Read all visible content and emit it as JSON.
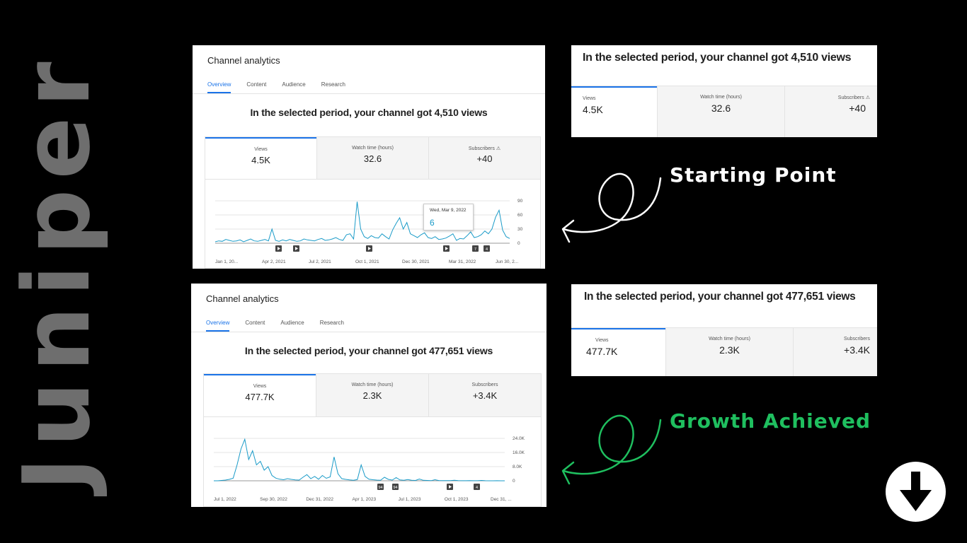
{
  "brand": "Juniper",
  "panels": [
    {
      "title": "Channel analytics",
      "tabs": [
        "Overview",
        "Content",
        "Audience",
        "Research"
      ],
      "headline": "In the selected period, your channel got 4,510 views",
      "metrics": [
        {
          "label": "Views",
          "value": "4.5K"
        },
        {
          "label": "Watch time (hours)",
          "value": "32.6"
        },
        {
          "label": "Subscribers",
          "value": "+40"
        }
      ],
      "y_ticks": [
        "90",
        "60",
        "30",
        "0"
      ],
      "x_ticks": [
        "Jan 1, 20...",
        "Apr 2, 2021",
        "Jul 2, 2021",
        "Oct 1, 2021",
        "Dec 30, 2021",
        "Mar 31, 2022",
        "Jun 30, 2..."
      ],
      "tooltip": {
        "date": "Wed, Mar 9, 2022",
        "value": "6"
      },
      "markers": [
        "",
        "",
        "",
        "",
        "7",
        "4"
      ]
    },
    {
      "title": "Channel analytics",
      "tabs": [
        "Overview",
        "Content",
        "Audience",
        "Research"
      ],
      "headline": "In the selected period, your channel got 477,651 views",
      "metrics": [
        {
          "label": "Views",
          "value": "477.7K"
        },
        {
          "label": "Watch time (hours)",
          "value": "2.3K"
        },
        {
          "label": "Subscribers",
          "value": "+3.4K"
        }
      ],
      "y_ticks": [
        "24.0K",
        "16.0K",
        "8.0K",
        "0"
      ],
      "x_ticks": [
        "Jul 1, 2022",
        "Sep 30, 2022",
        "Dec 31, 2022",
        "Apr 1, 2023",
        "Jul 1, 2023",
        "Oct 1, 2023",
        "Dec 31, ..."
      ],
      "markers": [
        "94",
        "94",
        "",
        "4"
      ]
    }
  ],
  "cards": [
    {
      "headline": "In the selected period, your channel got 4,510 views",
      "metrics": [
        {
          "label": "Views",
          "value": "4.5K"
        },
        {
          "label": "Watch time (hours)",
          "value": "32.6"
        },
        {
          "label": "Subscribers",
          "value": "+40"
        }
      ]
    },
    {
      "headline": "In the selected period, your channel got 477,651 views",
      "metrics": [
        {
          "label": "Views",
          "value": "477.7K"
        },
        {
          "label": "Watch time (hours)",
          "value": "2.3K"
        },
        {
          "label": "Subscribers",
          "value": "+3.4K"
        }
      ]
    }
  ],
  "captions": {
    "starting": "Starting Point",
    "growth": "Growth Achieved"
  },
  "colors": {
    "accent": "#1a73e8",
    "line": "#1a9bc8",
    "growth": "#1fbf5f",
    "brand_text": "#6e6e6e"
  },
  "icons": {
    "warning": "warning-icon",
    "down": "arrow-down-icon"
  },
  "chart_data": [
    {
      "type": "line",
      "title": "",
      "series": [
        {
          "values": [
            3,
            5,
            4,
            8,
            6,
            4,
            5,
            7,
            3,
            6,
            9,
            5,
            4,
            6,
            8,
            5,
            30,
            6,
            4,
            7,
            5,
            8,
            6,
            4,
            5,
            9,
            7,
            6,
            5,
            8,
            10,
            6,
            7,
            9,
            12,
            8,
            6,
            18,
            20,
            9,
            88,
            30,
            14,
            10,
            16,
            12,
            11,
            20,
            14,
            9,
            28,
            42,
            54,
            30,
            44,
            20,
            16,
            12,
            18,
            22,
            12,
            10,
            14,
            8,
            9,
            11,
            15,
            20,
            6,
            10,
            9,
            16,
            24,
            12,
            14,
            18,
            26,
            20,
            30,
            55,
            70,
            28,
            14,
            10
          ]
        }
      ],
      "x_ticks": [
        "Jan 1, 20...",
        "Apr 2, 2021",
        "Jul 2, 2021",
        "Oct 1, 2021",
        "Dec 30, 2021",
        "Mar 31, 2022",
        "Jun 30, 2..."
      ],
      "ylim": [
        0,
        90
      ],
      "y_ticks": [
        0,
        30,
        60,
        90
      ]
    },
    {
      "type": "line",
      "title": "",
      "series": [
        {
          "values": [
            0,
            0,
            200,
            400,
            800,
            1500,
            9000,
            18000,
            23500,
            12000,
            17000,
            9000,
            11000,
            6000,
            8000,
            3000,
            1500,
            900,
            600,
            1200,
            800,
            500,
            400,
            2000,
            3500,
            1200,
            2500,
            900,
            3000,
            1400,
            2200,
            13500,
            4000,
            1200,
            800,
            500,
            300,
            700,
            9000,
            2500,
            900,
            600,
            400,
            300,
            2000,
            800,
            400,
            1800,
            500,
            300,
            700,
            300,
            200,
            1000,
            300,
            200,
            100,
            600,
            150,
            120,
            100,
            80,
            300,
            60,
            50,
            40,
            100,
            40,
            30,
            200,
            30,
            20,
            20,
            50,
            20,
            20
          ]
        }
      ],
      "x_ticks": [
        "Jul 1, 2022",
        "Sep 30, 2022",
        "Dec 31, 2022",
        "Apr 1, 2023",
        "Jul 1, 2023",
        "Oct 1, 2023",
        "Dec 31, ..."
      ],
      "ylim": [
        0,
        24000
      ],
      "y_ticks": [
        0,
        8000,
        16000,
        24000
      ]
    }
  ]
}
